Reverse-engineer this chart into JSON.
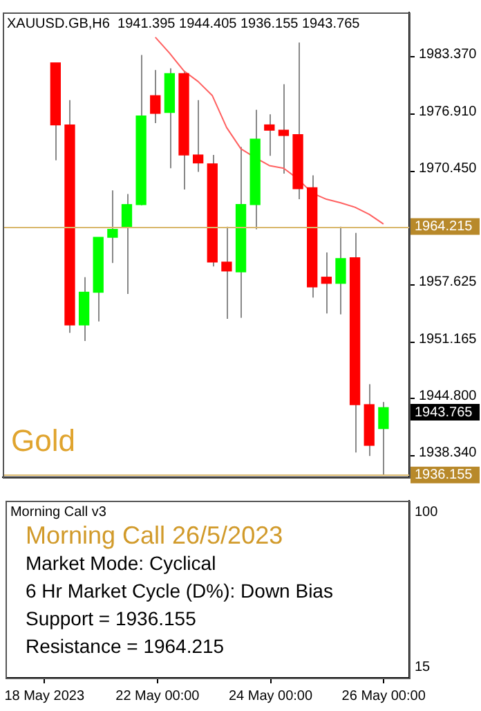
{
  "chart_data": [
    {
      "type": "candlestick",
      "title": "XAUUSD.GB,H6  1941.395 1944.405 1936.155 1943.765",
      "categories": [
        null,
        null,
        null,
        null,
        null,
        null,
        null,
        null,
        null,
        null,
        null,
        null,
        null,
        null,
        null,
        null,
        null,
        null,
        null,
        null,
        null,
        null,
        null,
        null,
        null
      ],
      "ohlc": [
        null,
        [
          1982.7,
          1982.7,
          1971.7,
          1975.7
        ],
        [
          1975.7,
          1978.5,
          1952.2,
          1953.1
        ],
        [
          1953.1,
          1958.5,
          1951.3,
          1956.8
        ],
        [
          1956.8,
          1963.0,
          1953.5,
          1963.0
        ],
        [
          1963.0,
          1968.3,
          1960.1,
          1963.9
        ],
        [
          1964.1,
          1967.9,
          1956.6,
          1966.7
        ],
        [
          1966.7,
          1983.6,
          1966.6,
          1976.7
        ],
        [
          1979.0,
          1981.9,
          1975.9,
          1977.0
        ],
        [
          1977.1,
          1982.1,
          1970.8,
          1981.5
        ],
        [
          1981.5,
          1981.8,
          1968.4,
          1972.3
        ],
        [
          1972.3,
          1978.5,
          1970.4,
          1971.4
        ],
        [
          1971.3,
          1972.3,
          1959.7,
          1960.2
        ],
        [
          1960.2,
          1964.2,
          1953.8,
          1959.2
        ],
        [
          1959.1,
          1973.2,
          1953.9,
          1966.7
        ],
        [
          1966.7,
          1977.4,
          1963.9,
          1974.1
        ],
        [
          1975.7,
          1976.9,
          1972.2,
          1975.1
        ],
        [
          1975.1,
          1980.3,
          1970.2,
          1974.5
        ],
        [
          1974.6,
          1985.0,
          1967.3,
          1968.5
        ],
        [
          1968.6,
          1970.0,
          1956.2,
          1957.4
        ],
        [
          1958.5,
          1961.3,
          1954.4,
          1957.8
        ],
        [
          1957.8,
          1964.2,
          1954.3,
          1960.6
        ],
        [
          1960.7,
          1963.5,
          1938.7,
          1944.1
        ],
        [
          1944.1,
          1946.4,
          1938.3,
          1939.5
        ],
        [
          1941.395,
          1944.405,
          1936.155,
          1943.765
        ]
      ],
      "colors": [
        null,
        "#ff0000",
        "#ff0000",
        "#00ff00",
        "#00ff00",
        "#00ff00",
        "#00ff00",
        "#00ff00",
        "#ff0000",
        "#00ff00",
        "#ff0000",
        "#ff0000",
        "#ff0000",
        "#ff0000",
        "#00ff00",
        "#00ff00",
        "#ff0000",
        "#ff0000",
        "#ff0000",
        "#ff0000",
        "#ff0000",
        "#00ff00",
        "#ff0000",
        "#ff0000",
        "#00ff00"
      ],
      "series": [
        {
          "type": "line",
          "color": "#ff6060",
          "values": [
            null,
            null,
            null,
            null,
            null,
            null,
            null,
            null,
            1985.6,
            1983.8,
            1981.8,
            1980.6,
            1979.0,
            1975.4,
            1973.0,
            1972.0,
            1971.1,
            1970.8,
            1969.6,
            1968.0,
            1967.3,
            1966.9,
            1966.4,
            1965.6,
            1964.5
          ]
        }
      ],
      "ylim": [
        1935.9,
        1988.4
      ],
      "yticks": [
        {
          "value": 1983.37,
          "label": "1983.370"
        },
        {
          "value": 1976.91,
          "label": "1976.910"
        },
        {
          "value": 1970.45,
          "label": "1970.450"
        },
        {
          "value": 1957.625,
          "label": "1957.625"
        },
        {
          "value": 1951.165,
          "label": "1951.165"
        },
        {
          "value": 1944.8,
          "label": "1944.800"
        },
        {
          "value": 1938.34,
          "label": "1938.340"
        }
      ],
      "ref_lines": [
        {
          "axis": "y",
          "value": 1964.215,
          "label": "1964.215",
          "color": "#d9b76c"
        },
        {
          "axis": "y",
          "value": 1936.155,
          "label": "1936.155",
          "color": "#d9b76c"
        }
      ],
      "annotations": [
        "Gold",
        "1943.765"
      ]
    },
    {
      "type": "other",
      "title": "Morning Call v3",
      "categories": [
        "18 May 2023",
        null,
        null,
        null,
        null,
        null,
        null,
        null,
        "22 May 00:00",
        null,
        null,
        null,
        null,
        null,
        null,
        null,
        "24 May 00:00",
        null,
        null,
        null,
        null,
        null,
        null,
        null,
        "26 May 00:00"
      ],
      "annotations": [
        "100",
        "15",
        "Morning Call 26/5/2023",
        "Market Mode: Cyclical",
        "6 Hr Market Cycle (D%): Down Bias",
        "Support = 1936.155",
        "Resistance = 1964.215"
      ]
    }
  ]
}
